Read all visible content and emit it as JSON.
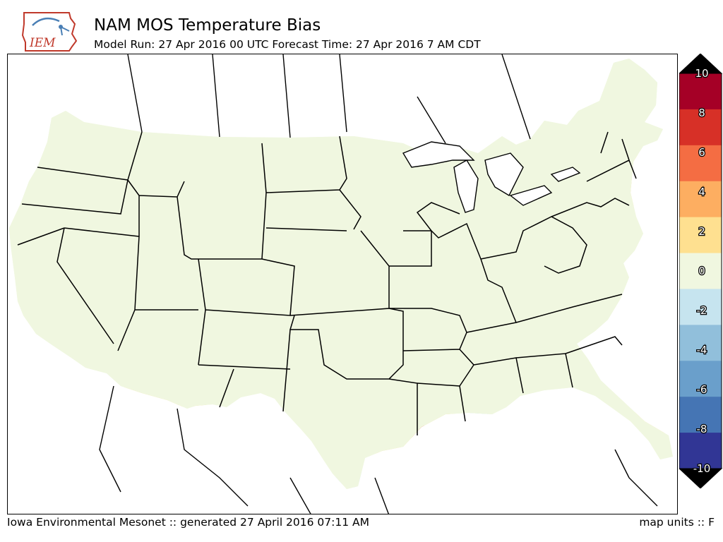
{
  "header": {
    "logo_text": "IEM",
    "title": "NAM MOS Temperature Bias",
    "subtitle": "Model Run: 27 Apr 2016 00 UTC Forecast Time: 27 Apr 2016 7 AM CDT"
  },
  "footer": {
    "credit": "Iowa Environmental Mesonet :: generated 27 April 2016 07:11 AM",
    "units": "map units :: F"
  },
  "legend": {
    "ticks": [
      "10",
      "8",
      "6",
      "4",
      "2",
      "0",
      "-2",
      "-4",
      "-6",
      "-8",
      "-10"
    ],
    "colors": [
      "#a50026",
      "#d73027",
      "#f46d43",
      "#fdae61",
      "#fee090",
      "#f0f7e0",
      "#c6e4ef",
      "#91bfdb",
      "#6a9fcb",
      "#4575b4",
      "#313695"
    ],
    "over_color": "#000000",
    "under_color": "#000000"
  },
  "map": {
    "background_color": "#f0f7e0",
    "bias_colors": {
      "warm_2_4": "#fee090",
      "warm_4_6": "#fdae61",
      "warm_6_8": "#f46d43",
      "warm_8_10": "#d73027",
      "warm_over_10": "#a50026",
      "cool_2_4": "#c6e4ef",
      "cool_4_6": "#91bfdb",
      "cool_6_8": "#6a9fcb",
      "cool_8_10": "#4575b4"
    }
  }
}
